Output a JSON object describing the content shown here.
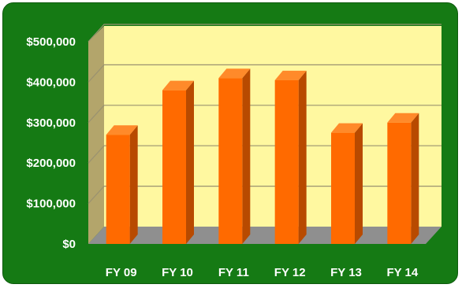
{
  "chart_data": {
    "type": "bar",
    "categories": [
      "FY 09",
      "FY 10",
      "FY 11",
      "FY 12",
      "FY 13",
      "FY 14"
    ],
    "series": [
      {
        "values": [
          270000,
          380000,
          410000,
          405000,
          275000,
          300000
        ]
      }
    ],
    "y_ticks": [
      "$0",
      "$100,000",
      "$200,000",
      "$300,000",
      "$400,000",
      "$500,000"
    ],
    "ylim": [
      0,
      500000
    ],
    "grid": true,
    "legend": "none",
    "title": "",
    "xlabel": "",
    "ylabel": "",
    "colors": {
      "background": "#157a14",
      "plot_area": "#fff8a0",
      "side_wall": "#b3a56b",
      "floor": "#8f8f8f",
      "bar_front": "#ff6a00",
      "bar_side": "#b84a00",
      "bar_top": "#ff8a2a",
      "gridline": "#9a9270",
      "tick_text": "#ffffff"
    }
  }
}
